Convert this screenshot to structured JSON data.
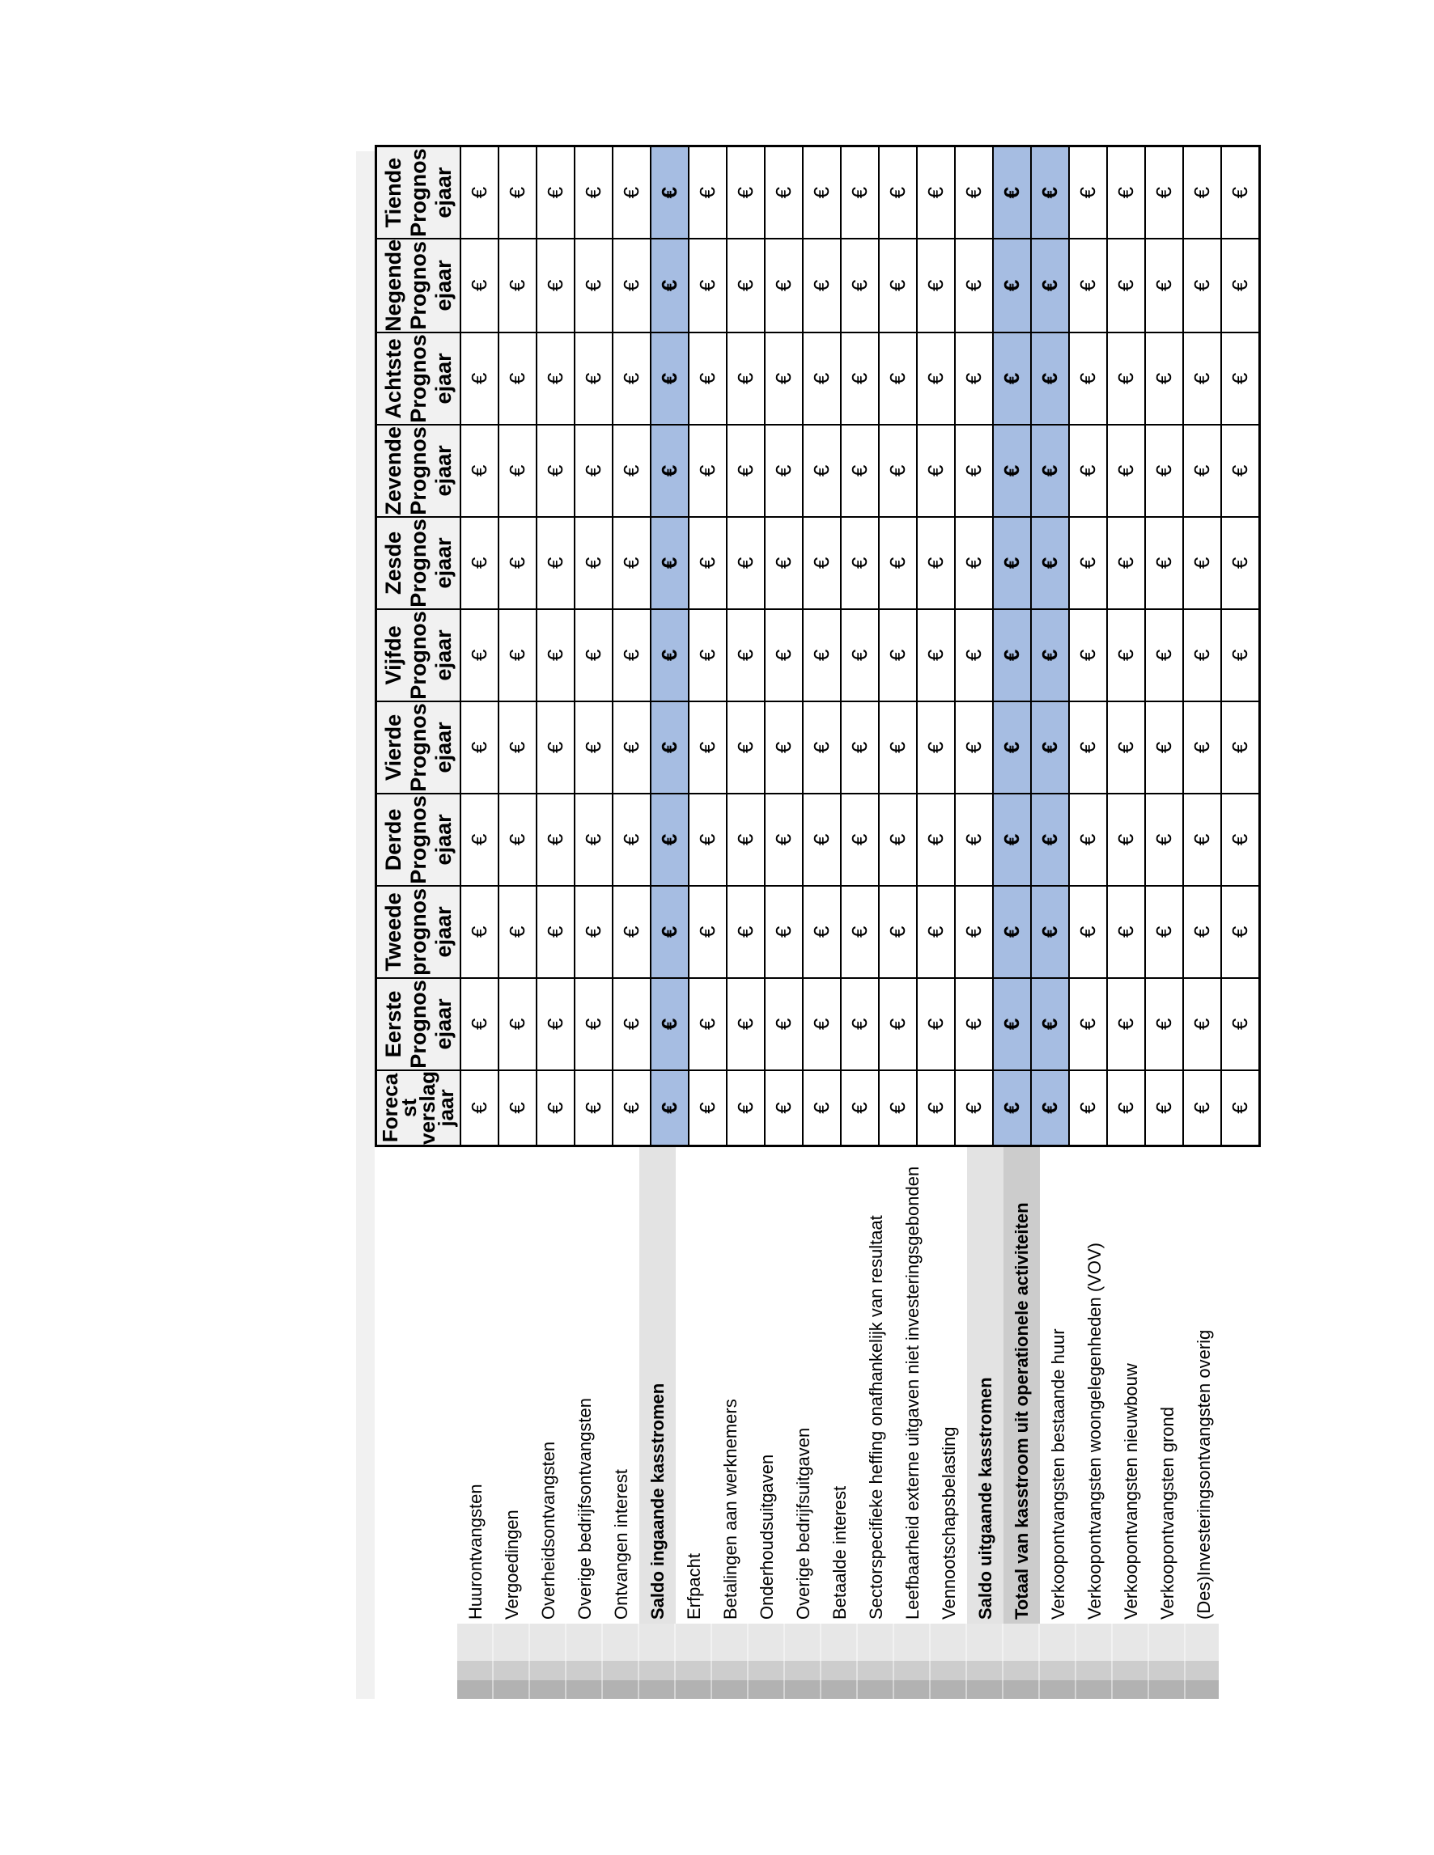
{
  "palette": {
    "grid_border": "#000000",
    "header_fill": "#f1f1f1",
    "cell_fill": "#ffffff",
    "highlight_cell_fill": "#a6bde2",
    "subtotal_label_fill": "#e3e3e3",
    "total_label_fill": "#cccccc",
    "top_band_fill": "#f1f1f1",
    "side_band_fills": {
      "dark": "#b2b2b2",
      "mid": "#cdcdcd",
      "light": "#e7e7e7"
    }
  },
  "currency_symbol": "€",
  "table": {
    "year_columns": [
      {
        "label": "Forecast verslagjaar",
        "display": "Foreca\nst\nverslag\njaar"
      },
      {
        "label": "Eerste Prognosejaar",
        "display": "Eerste\nPrognos\nejaar"
      },
      {
        "label": "Tweede prognosejaar",
        "display": "Tweede\nprognos\nejaar"
      },
      {
        "label": "Derde Prognosejaar",
        "display": "Derde\nPrognos\nejaar"
      },
      {
        "label": "Vierde Prognosejaar",
        "display": "Vierde\nPrognos\nejaar"
      },
      {
        "label": "Vijfde Prognosejaar",
        "display": "Vijfde\nPrognos\nejaar"
      },
      {
        "label": "Zesde Prognosejaar",
        "display": "Zesde\nPrognos\nejaar"
      },
      {
        "label": "Zevende Prognosejaar",
        "display": "Zevende\nPrognos\nejaar"
      },
      {
        "label": "Achtste Prognosejaar",
        "display": "Achtste\nPrognos\nejaar"
      },
      {
        "label": "Negende Prognosejaar",
        "display": "Negende\nPrognos\nejaar"
      },
      {
        "label": "Tiende Prognosejaar",
        "display": "Tiende\nPrognos\nejaar"
      }
    ],
    "rows": [
      {
        "label": "Huurontvangsten",
        "style": "normal",
        "values": [
          "€",
          "€",
          "€",
          "€",
          "€",
          "€",
          "€",
          "€",
          "€",
          "€",
          "€"
        ]
      },
      {
        "label": "Vergoedingen",
        "style": "normal",
        "values": [
          "€",
          "€",
          "€",
          "€",
          "€",
          "€",
          "€",
          "€",
          "€",
          "€",
          "€"
        ]
      },
      {
        "label": "Overheidsontvangsten",
        "style": "normal",
        "values": [
          "€",
          "€",
          "€",
          "€",
          "€",
          "€",
          "€",
          "€",
          "€",
          "€",
          "€"
        ]
      },
      {
        "label": "Overige bedrijfsontvangsten",
        "style": "normal",
        "values": [
          "€",
          "€",
          "€",
          "€",
          "€",
          "€",
          "€",
          "€",
          "€",
          "€",
          "€"
        ]
      },
      {
        "label": "Ontvangen interest",
        "style": "normal",
        "values": [
          "€",
          "€",
          "€",
          "€",
          "€",
          "€",
          "€",
          "€",
          "€",
          "€",
          "€"
        ]
      },
      {
        "label": "Saldo ingaande kasstromen",
        "style": "subtotal",
        "values": [
          "€",
          "€",
          "€",
          "€",
          "€",
          "€",
          "€",
          "€",
          "€",
          "€",
          "€"
        ]
      },
      {
        "label": "Erfpacht",
        "style": "normal",
        "values": [
          "€",
          "€",
          "€",
          "€",
          "€",
          "€",
          "€",
          "€",
          "€",
          "€",
          "€"
        ]
      },
      {
        "label": "Betalingen aan werknemers",
        "style": "normal",
        "values": [
          "€",
          "€",
          "€",
          "€",
          "€",
          "€",
          "€",
          "€",
          "€",
          "€",
          "€"
        ]
      },
      {
        "label": "Onderhoudsuitgaven",
        "style": "normal",
        "values": [
          "€",
          "€",
          "€",
          "€",
          "€",
          "€",
          "€",
          "€",
          "€",
          "€",
          "€"
        ]
      },
      {
        "label": "Overige bedrijfsuitgaven",
        "style": "normal",
        "values": [
          "€",
          "€",
          "€",
          "€",
          "€",
          "€",
          "€",
          "€",
          "€",
          "€",
          "€"
        ]
      },
      {
        "label": "Betaalde interest",
        "style": "normal",
        "values": [
          "€",
          "€",
          "€",
          "€",
          "€",
          "€",
          "€",
          "€",
          "€",
          "€",
          "€"
        ]
      },
      {
        "label": "Sectorspecifieke heffing onafhankelijk van resultaat",
        "style": "normal",
        "values": [
          "€",
          "€",
          "€",
          "€",
          "€",
          "€",
          "€",
          "€",
          "€",
          "€",
          "€"
        ]
      },
      {
        "label": "Leefbaarheid externe uitgaven niet investeringsgebonden",
        "style": "normal",
        "values": [
          "€",
          "€",
          "€",
          "€",
          "€",
          "€",
          "€",
          "€",
          "€",
          "€",
          "€"
        ]
      },
      {
        "label": "Vennootschapsbelasting",
        "style": "normal",
        "values": [
          "€",
          "€",
          "€",
          "€",
          "€",
          "€",
          "€",
          "€",
          "€",
          "€",
          "€"
        ]
      },
      {
        "label": "Saldo uitgaande kasstromen",
        "style": "subtotal",
        "values": [
          "€",
          "€",
          "€",
          "€",
          "€",
          "€",
          "€",
          "€",
          "€",
          "€",
          "€"
        ]
      },
      {
        "label": "Totaal van kasstroom uit operationele activiteiten",
        "style": "total",
        "values": [
          "€",
          "€",
          "€",
          "€",
          "€",
          "€",
          "€",
          "€",
          "€",
          "€",
          "€"
        ]
      },
      {
        "label": "Verkoopontvangsten bestaande huur",
        "style": "normal",
        "values": [
          "€",
          "€",
          "€",
          "€",
          "€",
          "€",
          "€",
          "€",
          "€",
          "€",
          "€"
        ]
      },
      {
        "label": "Verkoopontvangsten woongelegenheden (VOV)",
        "style": "normal",
        "values": [
          "€",
          "€",
          "€",
          "€",
          "€",
          "€",
          "€",
          "€",
          "€",
          "€",
          "€"
        ]
      },
      {
        "label": "Verkoopontvangsten nieuwbouw",
        "style": "normal",
        "values": [
          "€",
          "€",
          "€",
          "€",
          "€",
          "€",
          "€",
          "€",
          "€",
          "€",
          "€"
        ]
      },
      {
        "label": "Verkoopontvangsten grond",
        "style": "normal",
        "values": [
          "€",
          "€",
          "€",
          "€",
          "€",
          "€",
          "€",
          "€",
          "€",
          "€",
          "€"
        ]
      },
      {
        "label": "(Des)Investeringsontvangsten overig",
        "style": "normal",
        "values": [
          "€",
          "€",
          "€",
          "€",
          "€",
          "€",
          "€",
          "€",
          "€",
          "€",
          "€"
        ]
      }
    ]
  }
}
